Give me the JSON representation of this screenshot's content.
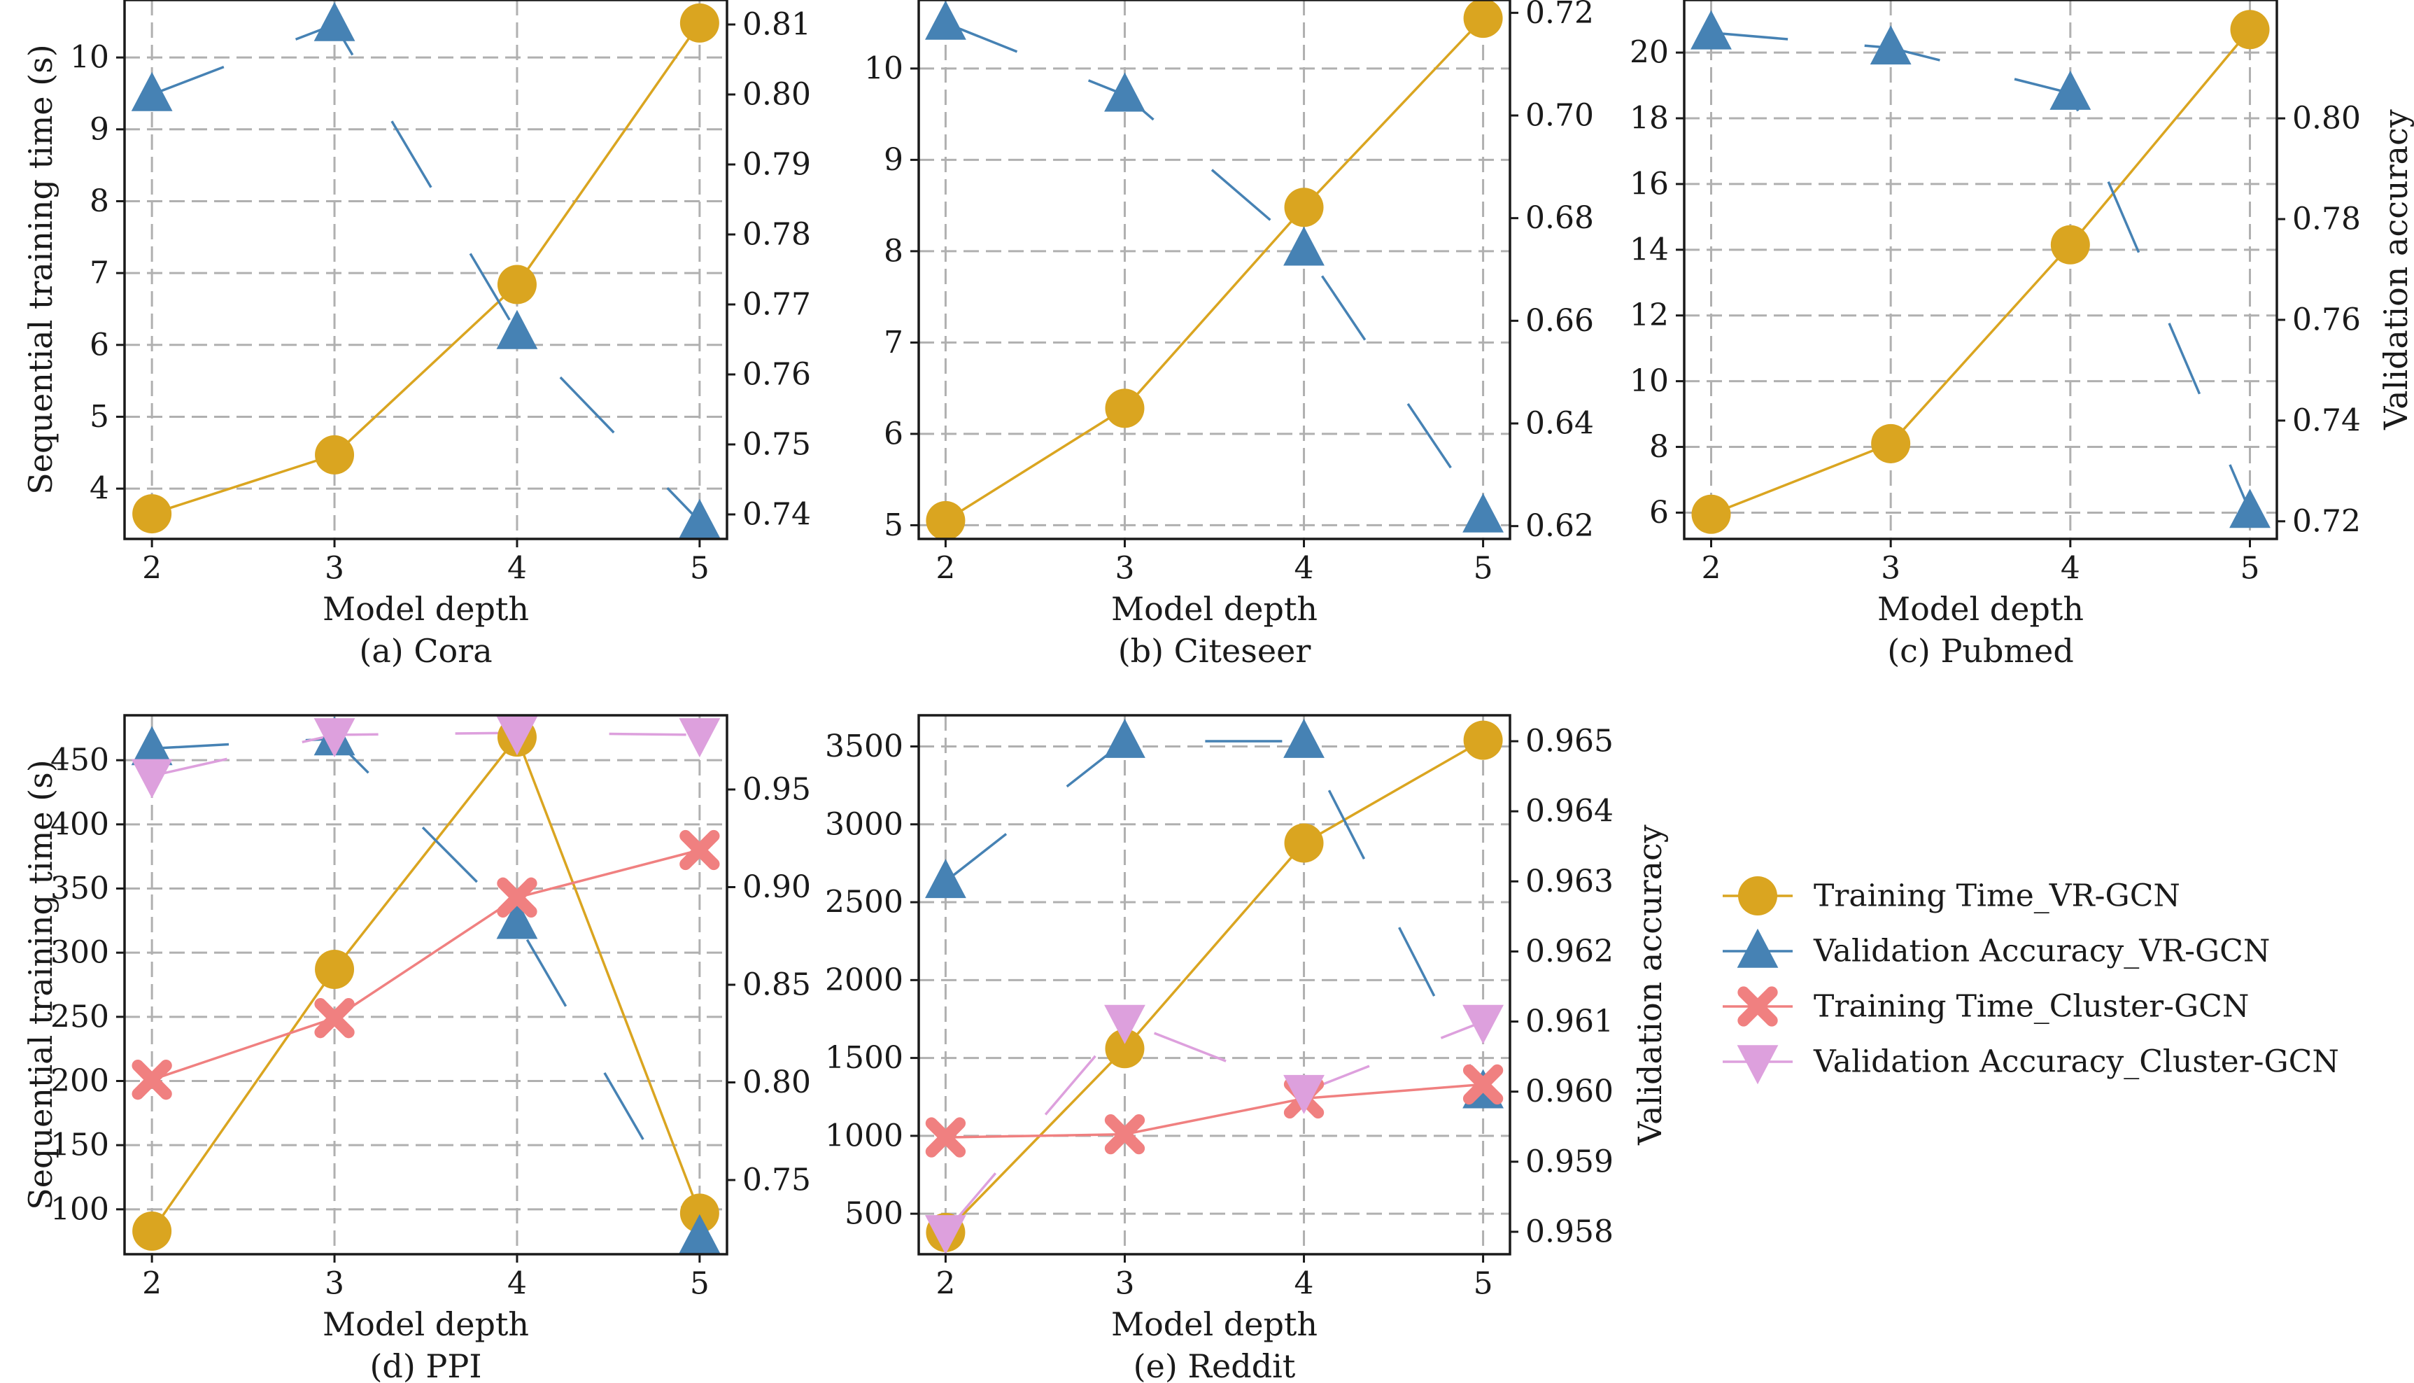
{
  "colors": {
    "training_time_vr": "#DAA520",
    "validation_vr": "#4682B4",
    "training_time_cluster": "#F08080",
    "validation_cluster": "#DDA0DD",
    "grid": "#b0b0b0",
    "axis": "#1a1a1a"
  },
  "legend": {
    "placement": "right of bottom row",
    "entries": [
      {
        "label": "Training Time_VR-GCN",
        "color": "#DAA520",
        "marker": "circle"
      },
      {
        "label": "Validation Accuracy_VR-GCN",
        "color": "#4682B4",
        "marker": "triangle-up"
      },
      {
        "label": "Training Time_Cluster-GCN",
        "color": "#F08080",
        "marker": "x"
      },
      {
        "label": "Validation Accuracy_Cluster-GCN",
        "color": "#DDA0DD",
        "marker": "triangle-down"
      }
    ]
  },
  "chart_data": [
    {
      "type": "line",
      "caption": "(a) Cora",
      "xlabel": "Model depth",
      "ylabel": "Sequential training time (s)",
      "y2label": "",
      "x": [
        2,
        3,
        4,
        5
      ],
      "xlim": [
        1.85,
        5.15
      ],
      "ylim": [
        3.3,
        10.8
      ],
      "yticks": [
        4,
        5,
        6,
        7,
        8,
        9,
        10
      ],
      "y2lim": [
        0.7365,
        0.8135
      ],
      "y2ticks": [
        0.74,
        0.75,
        0.76,
        0.77,
        0.78,
        0.79,
        0.8,
        0.81
      ],
      "y2decimals": 2,
      "grid": true,
      "series": [
        {
          "name": "Training Time_VR-GCN",
          "axis": "left",
          "values": [
            3.65,
            4.47,
            6.84,
            10.48
          ]
        },
        {
          "name": "Validation Accuracy_VR-GCN",
          "axis": "right",
          "values": [
            0.8,
            0.81,
            0.766,
            0.739
          ]
        }
      ]
    },
    {
      "type": "line",
      "caption": "(b) Citeseer",
      "xlabel": "Model depth",
      "ylabel": "",
      "y2label": "",
      "x": [
        2,
        3,
        4,
        5
      ],
      "xlim": [
        1.85,
        5.15
      ],
      "ylim": [
        4.85,
        10.75
      ],
      "yticks": [
        5,
        6,
        7,
        8,
        9,
        10
      ],
      "y2lim": [
        0.6175,
        0.7225
      ],
      "y2ticks": [
        0.62,
        0.64,
        0.66,
        0.68,
        0.7,
        0.72
      ],
      "y2decimals": 2,
      "grid": true,
      "series": [
        {
          "name": "Training Time_VR-GCN",
          "axis": "left",
          "values": [
            5.05,
            6.28,
            8.48,
            10.55
          ]
        },
        {
          "name": "Validation Accuracy_VR-GCN",
          "axis": "right",
          "values": [
            0.718,
            0.704,
            0.674,
            0.622
          ]
        }
      ]
    },
    {
      "type": "line",
      "caption": "(c) Pubmed",
      "xlabel": "Model depth",
      "ylabel": "",
      "y2label": "Validation accuracy",
      "x": [
        2,
        3,
        4,
        5
      ],
      "xlim": [
        1.85,
        5.15
      ],
      "ylim": [
        5.2,
        21.6
      ],
      "yticks": [
        6,
        8,
        10,
        12,
        14,
        16,
        18,
        20
      ],
      "y2lim": [
        0.7165,
        0.8235
      ],
      "y2ticks": [
        0.72,
        0.74,
        0.76,
        0.78,
        0.8
      ],
      "y2decimals": 2,
      "grid": true,
      "series": [
        {
          "name": "Training Time_VR-GCN",
          "axis": "left",
          "values": [
            5.95,
            8.1,
            14.15,
            20.7
          ]
        },
        {
          "name": "Validation Accuracy_VR-GCN",
          "axis": "right",
          "values": [
            0.817,
            0.814,
            0.805,
            0.722
          ]
        }
      ]
    },
    {
      "type": "line",
      "caption": "(d) PPI",
      "xlabel": "Model depth",
      "ylabel": "Sequential training time (s)",
      "y2label": "",
      "x": [
        2,
        3,
        4,
        5
      ],
      "xlim": [
        1.85,
        5.15
      ],
      "ylim": [
        65,
        485
      ],
      "yticks": [
        100,
        150,
        200,
        250,
        300,
        350,
        400,
        450
      ],
      "y2lim": [
        0.712,
        0.988
      ],
      "y2ticks": [
        0.75,
        0.8,
        0.85,
        0.9,
        0.95
      ],
      "y2decimals": 2,
      "grid": true,
      "series": [
        {
          "name": "Training Time_VR-GCN",
          "axis": "left",
          "values": [
            83,
            287,
            468,
            97
          ]
        },
        {
          "name": "Validation Accuracy_VR-GCN",
          "axis": "right",
          "values": [
            0.971,
            0.976,
            0.882,
            0.721
          ]
        },
        {
          "name": "Training Time_Cluster-GCN",
          "axis": "left",
          "values": [
            201,
            249,
            343,
            380
          ]
        },
        {
          "name": "Validation Accuracy_Cluster-GCN",
          "axis": "right",
          "values": [
            0.957,
            0.978,
            0.979,
            0.978
          ]
        }
      ]
    },
    {
      "type": "line",
      "caption": "(e) Reddit",
      "xlabel": "Model depth",
      "ylabel": "",
      "y2label": "Validation accuracy",
      "x": [
        2,
        3,
        4,
        5
      ],
      "xlim": [
        1.85,
        5.15
      ],
      "ylim": [
        240,
        3700
      ],
      "yticks": [
        500,
        1000,
        1500,
        2000,
        2500,
        3000,
        3500
      ],
      "y2lim": [
        0.95768,
        0.96537
      ],
      "y2ticks": [
        0.958,
        0.959,
        0.96,
        0.961,
        0.962,
        0.963,
        0.964,
        0.965
      ],
      "y2decimals": 3,
      "grid": true,
      "series": [
        {
          "name": "Training Time_VR-GCN",
          "axis": "left",
          "values": [
            380,
            1560,
            2880,
            3540
          ]
        },
        {
          "name": "Validation Accuracy_VR-GCN",
          "axis": "right",
          "values": [
            0.963,
            0.965,
            0.965,
            0.96
          ]
        },
        {
          "name": "Training Time_Cluster-GCN",
          "axis": "left",
          "values": [
            990,
            1010,
            1240,
            1330
          ]
        },
        {
          "name": "Validation Accuracy_Cluster-GCN",
          "axis": "right",
          "values": [
            0.958,
            0.961,
            0.96,
            0.961
          ]
        }
      ]
    }
  ]
}
